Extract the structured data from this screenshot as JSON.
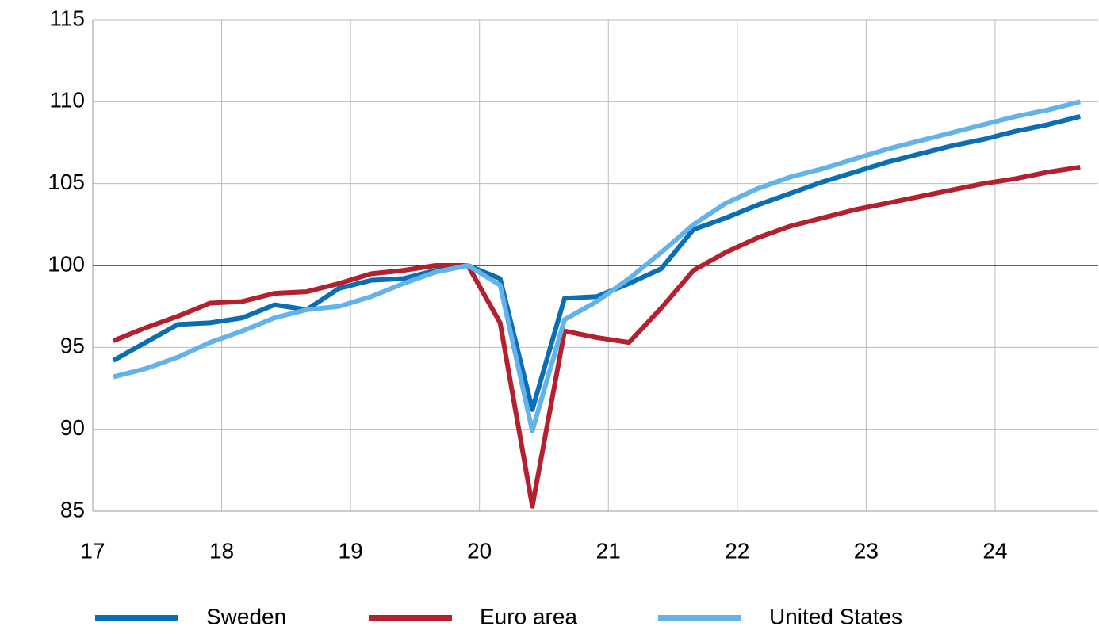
{
  "chart_data": {
    "type": "line",
    "x": [
      17.16,
      17.41,
      17.66,
      17.91,
      18.16,
      18.41,
      18.66,
      18.91,
      19.16,
      19.41,
      19.66,
      19.91,
      20.16,
      20.41,
      20.66,
      20.91,
      21.16,
      21.41,
      21.66,
      21.91,
      22.16,
      22.41,
      22.66,
      22.91,
      23.16,
      23.41,
      23.66,
      23.91,
      24.16,
      24.41,
      24.66
    ],
    "series": [
      {
        "name": "Sweden",
        "color": "#0a6eb4",
        "values": [
          94.2,
          95.3,
          96.4,
          96.5,
          96.8,
          97.6,
          97.3,
          98.6,
          99.1,
          99.2,
          99.7,
          100,
          99.2,
          91.2,
          98.0,
          98.1,
          98.9,
          99.8,
          102.2,
          102.9,
          103.7,
          104.4,
          105.1,
          105.7,
          106.3,
          106.8,
          107.3,
          107.7,
          108.2,
          108.6,
          109.1
        ]
      },
      {
        "name": "Euro area",
        "color": "#b5202e",
        "values": [
          95.4,
          96.2,
          96.9,
          97.7,
          97.8,
          98.3,
          98.4,
          98.9,
          99.5,
          99.7,
          100,
          100,
          96.5,
          85.3,
          96.0,
          95.6,
          95.3,
          97.4,
          99.7,
          100.8,
          101.7,
          102.4,
          102.9,
          103.4,
          103.8,
          104.2,
          104.6,
          105.0,
          105.3,
          105.7,
          106.0
        ]
      },
      {
        "name": "United States",
        "color": "#63b3ea",
        "values": [
          93.2,
          93.7,
          94.4,
          95.3,
          96.0,
          96.8,
          97.3,
          97.5,
          98.1,
          98.9,
          99.6,
          100,
          98.8,
          89.9,
          96.7,
          97.8,
          99.2,
          100.8,
          102.5,
          103.8,
          104.7,
          105.4,
          105.9,
          106.5,
          107.1,
          107.6,
          108.1,
          108.6,
          109.1,
          109.5,
          110.0
        ]
      }
    ],
    "xlim": [
      17,
      24.8
    ],
    "xticks": [
      17,
      18,
      19,
      20,
      21,
      22,
      23,
      24
    ],
    "ylim": [
      85,
      115
    ],
    "yticks": [
      85,
      90,
      95,
      100,
      105,
      110,
      115
    ],
    "grid": true,
    "reference_line": 100,
    "legend": "bottom"
  }
}
